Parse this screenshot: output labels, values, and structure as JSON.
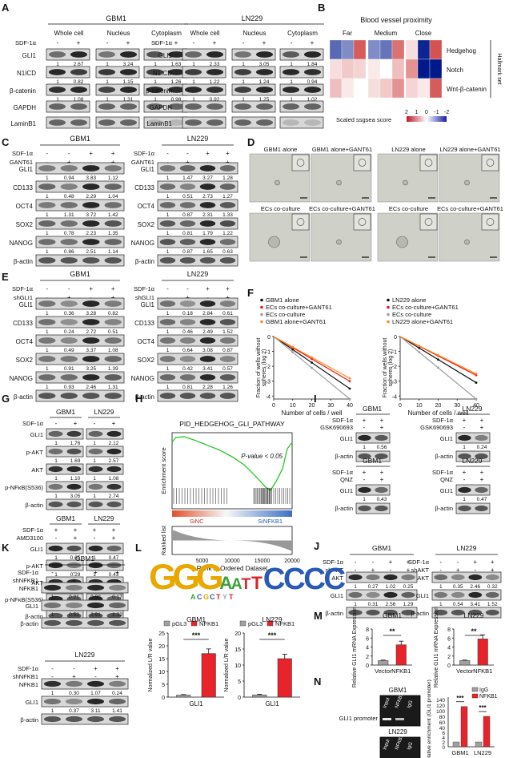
{
  "panels": [
    "A",
    "B",
    "C",
    "D",
    "E",
    "F",
    "G",
    "H",
    "I",
    "J",
    "K",
    "L",
    "M",
    "N"
  ],
  "panelA": {
    "title_left": "GBM1",
    "title_right": "LN229",
    "fractions": [
      "Whole cell",
      "Nucleus",
      "Cytoplasm"
    ],
    "sdf": "SDF-1α",
    "signs": [
      "-",
      "+"
    ],
    "rows": [
      "GLI1",
      "N1ICD",
      "β-catenin",
      "GAPDH",
      "LaminB1"
    ],
    "left_values": [
      [
        "1",
        "2.67",
        "1",
        "3.24",
        "1",
        "1.63"
      ],
      [
        "1",
        "0.82",
        "1",
        "1.15",
        "1",
        "1.26"
      ],
      [
        "1",
        "1.08",
        "1",
        "1.31",
        "1",
        "0.98"
      ]
    ],
    "right_values": [
      [
        "1",
        "2.33",
        "1",
        "3.05",
        "1",
        "1.84"
      ],
      [
        "1",
        "1.22",
        "1",
        "1.24",
        "1",
        "0.94"
      ],
      [
        "1",
        "0.92",
        "1",
        "1.25",
        "1",
        "1.02"
      ]
    ]
  },
  "panelB": {
    "title": "Blood vessel proximity",
    "groups": [
      "Far",
      "Medium",
      "Close"
    ],
    "rows": [
      "Hedgehog",
      "Notch",
      "Wnt-β-catenin"
    ],
    "side_label": "Hallmark set",
    "legend_label": "Scaled ssgsea score",
    "legend_ticks": [
      "2",
      "1",
      "0",
      "-1",
      "-2"
    ],
    "cells": [
      [
        -1.3,
        -1.0,
        1.5,
        -1.0,
        -1.2,
        1.3,
        0.3,
        -1.9,
        1.6
      ],
      [
        0.3,
        0.5,
        0.4,
        0.2,
        0.0,
        0.6,
        1.0,
        -2.1,
        -2.0
      ],
      [
        0.6,
        0.2,
        0.0,
        0.3,
        0.5,
        1.0,
        0.4,
        0.2,
        1.5
      ]
    ]
  },
  "panelC": {
    "title_left": "GBM1",
    "title_right": "LN229",
    "conds": [
      "SDF-1α",
      "GANT61"
    ],
    "signs": [
      [
        "-",
        "-",
        "+",
        "+"
      ],
      [
        "-",
        "+",
        "-",
        "+"
      ]
    ],
    "rows": [
      "GLI1",
      "CD133",
      "OCT4",
      "SOX2",
      "NANOG",
      "β-actin"
    ],
    "left_values": [
      [
        "1",
        "0.94",
        "3.83",
        "1.12"
      ],
      [
        "1",
        "0.48",
        "2.29",
        "1.04"
      ],
      [
        "1",
        "1.31",
        "3.72",
        "1.42"
      ],
      [
        "1",
        "0.78",
        "2.23",
        "1.35"
      ],
      [
        "1",
        "0.86",
        "2.51",
        "1.14"
      ]
    ],
    "right_values": [
      [
        "1",
        "1.47",
        "3.27",
        "1.28"
      ],
      [
        "1",
        "0.51",
        "2.73",
        "1.27"
      ],
      [
        "1",
        "0.87",
        "2.31",
        "1.33"
      ],
      [
        "1",
        "0.81",
        "1.79",
        "1.22"
      ],
      [
        "1",
        "0.87",
        "1.65",
        "0.63"
      ]
    ]
  },
  "panelD": {
    "title_left": "GBM1",
    "title_right": "LN229",
    "conds": [
      "SDF-1α",
      "shGLI1"
    ],
    "signs": [
      [
        "-",
        "-",
        "+",
        "+"
      ],
      [
        "-",
        "+",
        "-",
        "+"
      ]
    ],
    "rows": [
      "GLI1",
      "CD133",
      "OCT4",
      "SOX2",
      "NANOG",
      "β-actin"
    ],
    "left_values": [
      [
        "1",
        "0.36",
        "3.28",
        "0.82"
      ],
      [
        "1",
        "0.24",
        "2.72",
        "0.51"
      ],
      [
        "1",
        "0.49",
        "3.37",
        "1.08"
      ],
      [
        "1",
        "0.91",
        "3.25",
        "1.39"
      ],
      [
        "1",
        "0.93",
        "2.46",
        "1.31"
      ]
    ],
    "right_values": [
      [
        "1",
        "0.18",
        "2.84",
        "0.61"
      ],
      [
        "1",
        "0.46",
        "2.49",
        "1.52"
      ],
      [
        "1",
        "0.64",
        "3.08",
        "0.87"
      ],
      [
        "1",
        "0.42",
        "3.41",
        "0.57"
      ],
      [
        "1",
        "0.81",
        "2.28",
        "1.26"
      ]
    ]
  },
  "panelE": {
    "labels": [
      "GBM1 alone",
      "GBM1 alone+GANT61",
      "LN229 alone",
      "LN229 alone+GANT61",
      "ECs co-culture",
      "ECs co-culture+GANT61",
      "ECs co-culture",
      "ECs co-culture+GANT61"
    ]
  },
  "panelF": {
    "ylabel": "Fraction of wells without spheres (log 2)",
    "xlabel": "Number of cells / well",
    "legend_left": [
      "GBM1 alone",
      "ECs co-culture+GANT61",
      "ECs co-culture",
      "GBM1 alone+GANT61"
    ],
    "legend_right": [
      "LN229 alone",
      "ECs co-culture+GANT61",
      "ECs co-culture",
      "LN229 alone+GANT61"
    ]
  },
  "chart_data": [
    {
      "type": "line",
      "title": "",
      "xlabel": "Number of cells / well",
      "ylabel": "Fraction of wells without spheres (log 2)",
      "ylim": [
        -4.2,
        0
      ],
      "xlim": [
        0,
        40
      ],
      "y_ticks": [
        "0",
        "-1",
        "-2",
        "-3",
        "-4"
      ],
      "x_ticks": [
        "0",
        "10",
        "20",
        "30",
        "40"
      ],
      "series": [
        {
          "name": "GBM1 alone",
          "color": "#111111",
          "y_at_40": -3.5
        },
        {
          "name": "ECs co-culture+GANT61",
          "color": "#e31a1c",
          "y_at_40": -3.0
        },
        {
          "name": "ECs co-culture",
          "color": "#9e9e9e",
          "y_at_40": -4.2
        },
        {
          "name": "GBM1 alone+GANT61",
          "color": "#ff8c1a",
          "y_at_40": -2.8
        }
      ]
    },
    {
      "type": "line",
      "title": "",
      "xlabel": "Number of cells / well",
      "ylabel": "Fraction of wells without spheres (log 2)",
      "ylim": [
        -4.2,
        0
      ],
      "xlim": [
        0,
        40
      ],
      "y_ticks": [
        "0",
        "-1",
        "-2",
        "-3",
        "-4"
      ],
      "x_ticks": [
        "0",
        "10",
        "20",
        "30",
        "40"
      ],
      "series": [
        {
          "name": "LN229 alone",
          "color": "#111111",
          "y_at_40": -3.1
        },
        {
          "name": "ECs co-culture+GANT61",
          "color": "#e31a1c",
          "y_at_40": -2.6
        },
        {
          "name": "ECs co-culture",
          "color": "#9e9e9e",
          "y_at_40": -4.2
        },
        {
          "name": "LN229 alone+GANT61",
          "color": "#ff8c1a",
          "y_at_40": -2.5
        }
      ]
    },
    {
      "type": "bar",
      "categories": [
        "pGL3",
        "NFKB1"
      ],
      "title": "GBM1",
      "xlabel": "GLI1",
      "ylabel": "Normalized L/R value",
      "values": [
        0.8,
        17
      ],
      "errors": [
        0.2,
        1.8
      ],
      "ylim": [
        0,
        25
      ],
      "y_ticks": [
        "0",
        "5",
        "10",
        "15",
        "20",
        "25"
      ]
    },
    {
      "type": "bar",
      "categories": [
        "pGL3",
        "NFKB1"
      ],
      "title": "LN229",
      "xlabel": "GLI1",
      "ylabel": "Normalized L/R value",
      "values": [
        0.7,
        12
      ],
      "errors": [
        0.2,
        1.4
      ],
      "ylim": [
        0,
        20
      ],
      "y_ticks": [
        "0",
        "5",
        "10",
        "15",
        "20"
      ]
    },
    {
      "type": "bar",
      "categories": [
        "Vector",
        "NFKB1"
      ],
      "title": "GBM1",
      "ylabel": "Relative GLI1 mRNA Expression",
      "values": [
        1.0,
        4.5
      ],
      "errors": [
        0.1,
        0.8
      ],
      "ylim": [
        0,
        8
      ],
      "y_ticks": [
        "0",
        "2",
        "4",
        "6",
        "8"
      ]
    },
    {
      "type": "bar",
      "categories": [
        "Vector",
        "NFKB1"
      ],
      "title": "LN229",
      "ylabel": "Relative GLI1 mRNA Expression",
      "values": [
        1.0,
        5.8
      ],
      "errors": [
        0.1,
        0.9
      ],
      "ylim": [
        0,
        8
      ],
      "y_ticks": [
        "0",
        "2",
        "4",
        "6",
        "8"
      ]
    },
    {
      "type": "bar",
      "categories": [
        "GBM1",
        "LN229"
      ],
      "ylabel": "Relative enrichment (GLI1 promoter)",
      "series": [
        {
          "name": "IgG",
          "values": [
            3,
            3
          ]
        },
        {
          "name": "NFKB1",
          "values": [
            115,
            80
          ]
        }
      ],
      "ylim": [
        0,
        140
      ],
      "y_ticks": [
        "0",
        "2",
        "4",
        "6",
        "40",
        "60",
        "80",
        "100",
        "120",
        "140"
      ]
    }
  ],
  "panelG": {
    "top_titles": [
      "GBM1",
      "LN229"
    ],
    "sdf": "SDF-1α",
    "amd": "AMD3100",
    "top_signs": [
      "-",
      "+",
      "-",
      "+"
    ],
    "top_rows": [
      "GLI1",
      "p-AKT",
      "AKT",
      "p-NFκB(S536)",
      "β-actin"
    ],
    "top_values": [
      [
        "1",
        "1.76",
        "1",
        "2.12"
      ],
      [
        "1",
        "1.69",
        "1",
        "2.57"
      ],
      [
        "1",
        "1.10",
        "1",
        "1.08"
      ],
      [
        "1",
        "3.05",
        "1",
        "2.74"
      ]
    ],
    "bot_signs": [
      [
        "+",
        "+",
        "+",
        "+"
      ],
      [
        "-",
        "+",
        "-",
        "+"
      ]
    ],
    "bot_rows": [
      "GLI1",
      "p-AKT",
      "AKT",
      "p-NFκB(S536)",
      "β-actin"
    ],
    "bot_values": [
      [
        "1",
        "0.65",
        "1",
        "0.47"
      ],
      [
        "1",
        "0.29",
        "1",
        "0.43"
      ],
      [
        "1",
        "0.97",
        "1",
        "1.05"
      ],
      [
        "1",
        "0.48",
        "1",
        "0.42"
      ]
    ]
  },
  "panelH": {
    "title": "PID_HEDGEHOG_GLI_PATHWAY",
    "pvalue": "P-value < 0.05",
    "ylabel_top": "Enrichment score",
    "ylabel_bot": "Ranked list",
    "left_tag": "SiNC",
    "right_tag": "SiNFKB1",
    "xlabel": "Rank in Ordered Dataset",
    "x_ticks": [
      "5000",
      "10000",
      "15000",
      "20000"
    ]
  },
  "panelI": {
    "titles": [
      "GBM1",
      "LN229"
    ],
    "inh1": "GSK690693",
    "inh2": "QNZ",
    "sdf": "SDF-1α",
    "rows": [
      "GLI1",
      "β-actin"
    ],
    "v1": [
      "1",
      "0.56"
    ],
    "v2": [
      "1",
      "0.24"
    ],
    "v3": [
      "1",
      "0.43"
    ],
    "v4": [
      "1",
      "0.47"
    ]
  },
  "panelJ": {
    "titles": [
      "GBM1",
      "LN229"
    ],
    "conds": [
      "SDF-1α",
      "shAKT"
    ],
    "signs": [
      [
        "-",
        "-",
        "+",
        "+"
      ],
      [
        "-",
        "+",
        "-",
        "+"
      ]
    ],
    "rows": [
      "AKT",
      "GLI1",
      "β-actin"
    ],
    "left_values": [
      [
        "1",
        "0.27",
        "1.02",
        "0.25"
      ],
      [
        "1",
        "0.31",
        "2.56",
        "1.29"
      ]
    ],
    "right_values": [
      [
        "1",
        "0.35",
        "2.46",
        "0.32"
      ],
      [
        "1",
        "0.54",
        "3.41",
        "1.52"
      ]
    ]
  },
  "panelK": {
    "titles": [
      "GBM1",
      "LN229"
    ],
    "conds": [
      "SDF-1α",
      "shNFKB1"
    ],
    "signs": [
      [
        "-",
        "-",
        "+",
        "+"
      ],
      [
        "-",
        "+",
        "-",
        "+"
      ]
    ],
    "rows": [
      "NFKB1",
      "GLI1",
      "β-actin"
    ],
    "left_values": [
      [
        "1",
        "0.21",
        "0.98",
        "0.17"
      ],
      [
        "1",
        "0.53",
        "2.91",
        "1.32"
      ]
    ],
    "right_values": [
      [
        "1",
        "0.30",
        "1.07",
        "0.24"
      ],
      [
        "1",
        "0.37",
        "3.11",
        "1.41"
      ]
    ]
  },
  "panelL": {
    "motif": "GGGAATTCCCC",
    "motif_small": "ACGCTYT",
    "sig": "***"
  },
  "panelM": {
    "sig": "**"
  },
  "panelN": {
    "titles": [
      "GBM1",
      "LN229"
    ],
    "lanes": [
      "Input",
      "NFKB1",
      "IgG"
    ],
    "row_label": "GLI1 promoter",
    "legend": [
      "IgG",
      "NFKB1"
    ],
    "sig": "***",
    "colors": {
      "igg": "#a0a0a0",
      "nfkb1": "#e8232a"
    }
  }
}
